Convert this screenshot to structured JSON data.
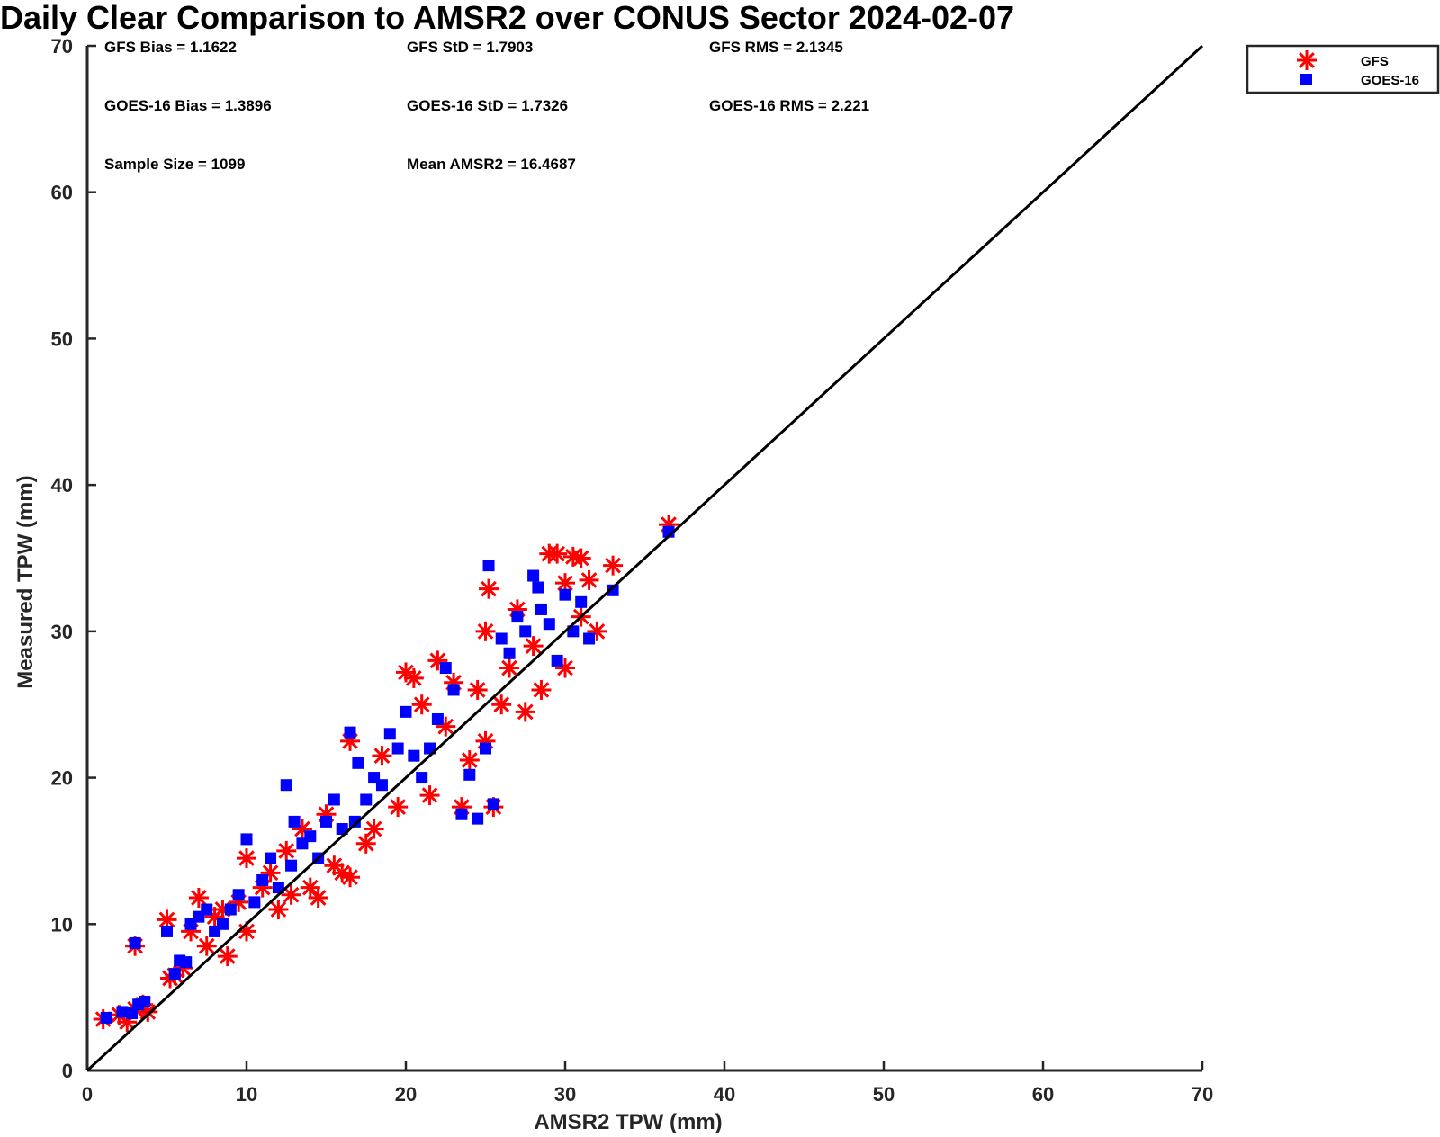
{
  "chart_data": {
    "type": "scatter",
    "title": "Daily Clear Comparison to AMSR2 over CONUS Sector 2024-02-07",
    "xlabel": "AMSR2 TPW (mm)",
    "ylabel": "Measured TPW (mm)",
    "xlim": [
      0,
      70
    ],
    "ylim": [
      0,
      70
    ],
    "xticks": [
      "0",
      "10",
      "20",
      "30",
      "40",
      "50",
      "60",
      "70"
    ],
    "yticks": [
      "0",
      "10",
      "20",
      "30",
      "40",
      "50",
      "60",
      "70"
    ],
    "grid": false,
    "legend_position": "outside-top-right",
    "reference_line": {
      "x": [
        0,
        70
      ],
      "y": [
        0,
        70
      ],
      "color": "#000000"
    },
    "stats": [
      "GFS Bias = 1.1622",
      "GFS StD = 1.7903",
      "GFS RMS = 2.1345",
      "GOES-16 Bias = 1.3896",
      "GOES-16 StD = 1.7326",
      "GOES-16 RMS = 2.221",
      "Sample Size = 1099",
      "Mean AMSR2 = 16.4687"
    ],
    "series": [
      {
        "name": "GFS",
        "marker": "asterisk",
        "color": "#ff0000",
        "points": [
          [
            1.0,
            3.5
          ],
          [
            2.0,
            3.8
          ],
          [
            2.5,
            3.3
          ],
          [
            3.0,
            8.5
          ],
          [
            3.0,
            4.2
          ],
          [
            3.5,
            4.5
          ],
          [
            3.8,
            4.0
          ],
          [
            5.0,
            10.3
          ],
          [
            5.2,
            6.3
          ],
          [
            5.5,
            6.5
          ],
          [
            6.0,
            7.0
          ],
          [
            6.5,
            9.5
          ],
          [
            7.0,
            11.8
          ],
          [
            7.5,
            8.5
          ],
          [
            8.0,
            10.5
          ],
          [
            8.5,
            11.0
          ],
          [
            8.8,
            7.8
          ],
          [
            9.5,
            11.5
          ],
          [
            10.0,
            14.5
          ],
          [
            10.0,
            9.5
          ],
          [
            11.0,
            12.5
          ],
          [
            11.5,
            13.5
          ],
          [
            12.0,
            11.0
          ],
          [
            12.5,
            15.0
          ],
          [
            12.8,
            12.0
          ],
          [
            13.5,
            16.5
          ],
          [
            14.0,
            12.5
          ],
          [
            14.5,
            11.8
          ],
          [
            15.0,
            17.5
          ],
          [
            15.5,
            14.0
          ],
          [
            16.0,
            13.5
          ],
          [
            16.5,
            13.2
          ],
          [
            16.5,
            22.5
          ],
          [
            17.5,
            15.5
          ],
          [
            18.0,
            16.5
          ],
          [
            18.5,
            21.5
          ],
          [
            19.5,
            18.0
          ],
          [
            20.0,
            27.2
          ],
          [
            20.5,
            26.8
          ],
          [
            21.0,
            25.0
          ],
          [
            21.5,
            18.8
          ],
          [
            22.0,
            28.0
          ],
          [
            22.5,
            23.5
          ],
          [
            23.0,
            26.5
          ],
          [
            23.5,
            18.0
          ],
          [
            24.0,
            21.2
          ],
          [
            24.5,
            26.0
          ],
          [
            25.0,
            30.0
          ],
          [
            25.2,
            32.9
          ],
          [
            25.5,
            18.0
          ],
          [
            25.0,
            22.5
          ],
          [
            26.0,
            25.0
          ],
          [
            26.5,
            27.5
          ],
          [
            27.0,
            31.5
          ],
          [
            27.5,
            24.5
          ],
          [
            28.0,
            29.0
          ],
          [
            28.5,
            26.0
          ],
          [
            29.0,
            35.3
          ],
          [
            29.5,
            35.3
          ],
          [
            30.0,
            33.3
          ],
          [
            30.5,
            35.1
          ],
          [
            31.0,
            35.0
          ],
          [
            30.0,
            27.5
          ],
          [
            31.0,
            31.0
          ],
          [
            31.5,
            33.5
          ],
          [
            32.0,
            30.0
          ],
          [
            33.0,
            34.5
          ],
          [
            36.5,
            37.3
          ]
        ]
      },
      {
        "name": "GOES-16",
        "marker": "square",
        "color": "#0000ff",
        "points": [
          [
            1.2,
            3.6
          ],
          [
            2.2,
            4.0
          ],
          [
            2.8,
            3.9
          ],
          [
            3.0,
            8.7
          ],
          [
            3.2,
            4.5
          ],
          [
            3.6,
            4.7
          ],
          [
            5.0,
            9.5
          ],
          [
            5.5,
            6.6
          ],
          [
            5.8,
            7.5
          ],
          [
            6.2,
            7.4
          ],
          [
            6.5,
            10.0
          ],
          [
            7.0,
            10.5
          ],
          [
            7.5,
            11.0
          ],
          [
            8.0,
            9.5
          ],
          [
            8.5,
            10.0
          ],
          [
            9.0,
            11.0
          ],
          [
            9.5,
            12.0
          ],
          [
            10.0,
            15.8
          ],
          [
            10.5,
            11.5
          ],
          [
            11.0,
            13.0
          ],
          [
            11.5,
            14.5
          ],
          [
            12.0,
            12.5
          ],
          [
            12.5,
            19.5
          ],
          [
            12.8,
            14.0
          ],
          [
            13.0,
            17.0
          ],
          [
            13.5,
            15.5
          ],
          [
            14.0,
            16.0
          ],
          [
            14.5,
            14.5
          ],
          [
            15.0,
            17.0
          ],
          [
            15.5,
            18.5
          ],
          [
            16.0,
            16.5
          ],
          [
            16.5,
            23.1
          ],
          [
            16.8,
            17.0
          ],
          [
            17.0,
            21.0
          ],
          [
            17.5,
            18.5
          ],
          [
            18.0,
            20.0
          ],
          [
            18.5,
            19.5
          ],
          [
            19.0,
            23.0
          ],
          [
            19.5,
            22.0
          ],
          [
            20.0,
            24.5
          ],
          [
            20.5,
            21.5
          ],
          [
            21.0,
            20.0
          ],
          [
            21.5,
            22.0
          ],
          [
            22.0,
            24.0
          ],
          [
            22.5,
            27.5
          ],
          [
            23.0,
            26.0
          ],
          [
            23.5,
            17.5
          ],
          [
            24.0,
            20.2
          ],
          [
            24.5,
            17.2
          ],
          [
            25.0,
            22.0
          ],
          [
            25.2,
            34.5
          ],
          [
            25.5,
            18.2
          ],
          [
            26.0,
            29.5
          ],
          [
            26.5,
            28.5
          ],
          [
            27.0,
            31.0
          ],
          [
            27.5,
            30.0
          ],
          [
            28.0,
            33.8
          ],
          [
            28.3,
            33.0
          ],
          [
            28.5,
            31.5
          ],
          [
            29.0,
            30.5
          ],
          [
            29.5,
            28.0
          ],
          [
            30.0,
            32.5
          ],
          [
            30.5,
            30.0
          ],
          [
            31.0,
            32.0
          ],
          [
            31.5,
            29.5
          ],
          [
            33.0,
            32.8
          ],
          [
            36.5,
            36.8
          ]
        ]
      }
    ]
  }
}
